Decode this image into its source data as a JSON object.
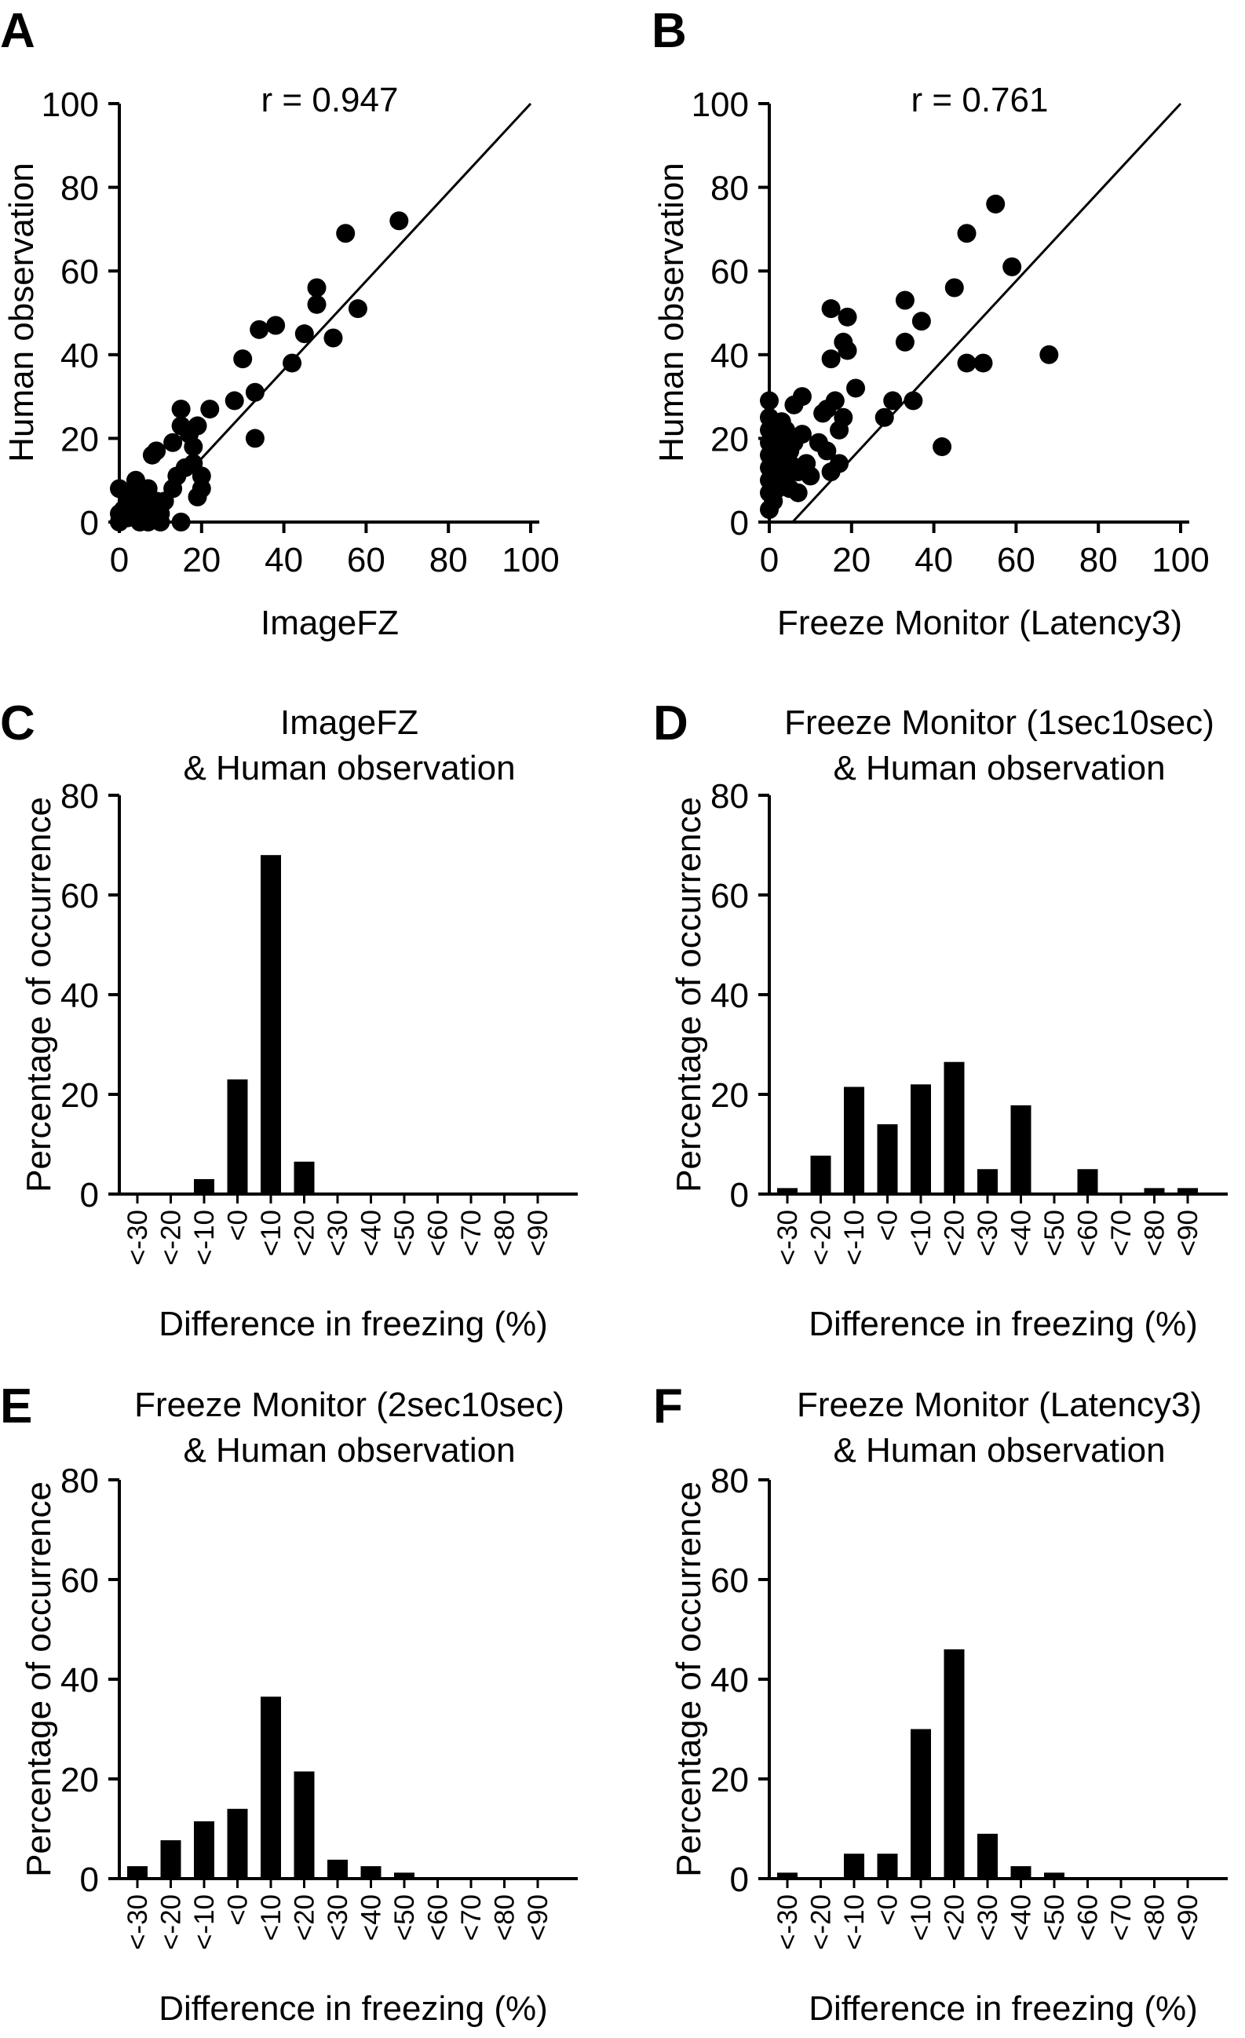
{
  "figure": {
    "panels": [
      {
        "letter": "A",
        "kind": "scatter"
      },
      {
        "letter": "B",
        "kind": "scatter"
      },
      {
        "letter": "C",
        "kind": "histogram"
      },
      {
        "letter": "D",
        "kind": "histogram"
      },
      {
        "letter": "E",
        "kind": "histogram"
      },
      {
        "letter": "F",
        "kind": "histogram"
      }
    ]
  },
  "chart_data": [
    {
      "panel": "A",
      "type": "scatter",
      "title": "",
      "annotation": "r = 0.947",
      "xlabel": "ImageFZ",
      "ylabel": "Human observation",
      "xlim": [
        0,
        100
      ],
      "ylim": [
        0,
        100
      ],
      "xticks": [
        0,
        20,
        40,
        60,
        80,
        100
      ],
      "yticks": [
        0,
        20,
        40,
        60,
        80,
        100
      ],
      "xtick_labels": [
        "0",
        "20",
        "40",
        "60",
        "80",
        "100"
      ],
      "ytick_labels": [
        "0",
        "20",
        "40",
        "60",
        "80",
        "100"
      ],
      "fit_line": {
        "x": [
          0,
          100
        ],
        "y": [
          -6,
          100
        ]
      },
      "points": [
        [
          0,
          8
        ],
        [
          0,
          2
        ],
        [
          0,
          0
        ],
        [
          1,
          3
        ],
        [
          2,
          5
        ],
        [
          2,
          1
        ],
        [
          3,
          7
        ],
        [
          4,
          10
        ],
        [
          4,
          2
        ],
        [
          5,
          0
        ],
        [
          5,
          5
        ],
        [
          6,
          3
        ],
        [
          7,
          0
        ],
        [
          7,
          8
        ],
        [
          8,
          2
        ],
        [
          8,
          16
        ],
        [
          9,
          17
        ],
        [
          9,
          5
        ],
        [
          10,
          0
        ],
        [
          10,
          2
        ],
        [
          11,
          5
        ],
        [
          13,
          19
        ],
        [
          13,
          8
        ],
        [
          14,
          11
        ],
        [
          15,
          0
        ],
        [
          15,
          23
        ],
        [
          15,
          27
        ],
        [
          16,
          13
        ],
        [
          17,
          21
        ],
        [
          18,
          14
        ],
        [
          18,
          18
        ],
        [
          19,
          6
        ],
        [
          19,
          23
        ],
        [
          20,
          11
        ],
        [
          20,
          8
        ],
        [
          22,
          27
        ],
        [
          28,
          29
        ],
        [
          30,
          39
        ],
        [
          33,
          31
        ],
        [
          34,
          46
        ],
        [
          33,
          20
        ],
        [
          38,
          47
        ],
        [
          42,
          38
        ],
        [
          45,
          45
        ],
        [
          48,
          52
        ],
        [
          48,
          56
        ],
        [
          52,
          44
        ],
        [
          55,
          69
        ],
        [
          58,
          51
        ],
        [
          68,
          72
        ]
      ]
    },
    {
      "panel": "B",
      "type": "scatter",
      "title": "",
      "annotation": "r = 0.761",
      "xlabel": "Freeze Monitor (Latency3)",
      "ylabel": "Human observation",
      "xlim": [
        0,
        100
      ],
      "ylim": [
        0,
        100
      ],
      "xticks": [
        0,
        20,
        40,
        60,
        80,
        100
      ],
      "yticks": [
        0,
        20,
        40,
        60,
        80,
        100
      ],
      "xtick_labels": [
        "0",
        "20",
        "40",
        "60",
        "80",
        "100"
      ],
      "ytick_labels": [
        "0",
        "20",
        "40",
        "60",
        "80",
        "100"
      ],
      "fit_line": {
        "x": [
          0,
          100
        ],
        "y": [
          -6,
          100
        ]
      },
      "points": [
        [
          0,
          3
        ],
        [
          0,
          7
        ],
        [
          0,
          10
        ],
        [
          0,
          13
        ],
        [
          0,
          16
        ],
        [
          0,
          19
        ],
        [
          0,
          22
        ],
        [
          0,
          25
        ],
        [
          0,
          29
        ],
        [
          1,
          5
        ],
        [
          1,
          11
        ],
        [
          1,
          17
        ],
        [
          2,
          8
        ],
        [
          2,
          15
        ],
        [
          2,
          20
        ],
        [
          3,
          12
        ],
        [
          3,
          18
        ],
        [
          3,
          24
        ],
        [
          4,
          9
        ],
        [
          4,
          22
        ],
        [
          5,
          14
        ],
        [
          5,
          17
        ],
        [
          5,
          8
        ],
        [
          6,
          19
        ],
        [
          6,
          28
        ],
        [
          7,
          7
        ],
        [
          7,
          12
        ],
        [
          8,
          30
        ],
        [
          8,
          21
        ],
        [
          9,
          14
        ],
        [
          10,
          11
        ],
        [
          12,
          19
        ],
        [
          13,
          26
        ],
        [
          14,
          17
        ],
        [
          14,
          27
        ],
        [
          15,
          12
        ],
        [
          15,
          39
        ],
        [
          15,
          51
        ],
        [
          16,
          29
        ],
        [
          17,
          22
        ],
        [
          17,
          14
        ],
        [
          18,
          25
        ],
        [
          18,
          43
        ],
        [
          19,
          49
        ],
        [
          19,
          41
        ],
        [
          21,
          32
        ],
        [
          28,
          25
        ],
        [
          30,
          29
        ],
        [
          33,
          53
        ],
        [
          33,
          43
        ],
        [
          35,
          29
        ],
        [
          37,
          48
        ],
        [
          42,
          18
        ],
        [
          45,
          56
        ],
        [
          48,
          38
        ],
        [
          48,
          69
        ],
        [
          52,
          38
        ],
        [
          55,
          76
        ],
        [
          59,
          61
        ],
        [
          68,
          40
        ]
      ]
    },
    {
      "panel": "C",
      "type": "bar",
      "title": "ImageFZ",
      "subtitle": "& Human observation",
      "xlabel": "Difference in freezing (%)",
      "ylabel": "Percentage of occurrence",
      "ylim": [
        0,
        80
      ],
      "yticks": [
        0,
        20,
        40,
        60,
        80
      ],
      "ytick_labels": [
        "0",
        "20",
        "40",
        "60",
        "80"
      ],
      "categories": [
        "<-30",
        "<-20",
        "<-10",
        "<0",
        "<10",
        "<20",
        "<30",
        "<40",
        "<50",
        "<60",
        "<70",
        "<80",
        "<90"
      ],
      "values": [
        0,
        0,
        3,
        23,
        68,
        6.5,
        0,
        0,
        0,
        0,
        0,
        0,
        0
      ]
    },
    {
      "panel": "D",
      "type": "bar",
      "title": "Freeze Monitor (1sec10sec)",
      "subtitle": "& Human observation",
      "xlabel": "Difference in freezing (%)",
      "ylabel": "Percentage of occurrence",
      "ylim": [
        0,
        80
      ],
      "yticks": [
        0,
        20,
        40,
        60,
        80
      ],
      "ytick_labels": [
        "0",
        "20",
        "40",
        "60",
        "80"
      ],
      "categories": [
        "<-30",
        "<-20",
        "<-10",
        "<0",
        "<10",
        "<20",
        "<30",
        "<40",
        "<50",
        "<60",
        "<70",
        "<80",
        "<90"
      ],
      "values": [
        1.2,
        7.7,
        21.5,
        14,
        22,
        26.5,
        5,
        17.8,
        0,
        5,
        0,
        1.2,
        1.2
      ]
    },
    {
      "panel": "E",
      "type": "bar",
      "title": "Freeze Monitor (2sec10sec)",
      "subtitle": "& Human observation",
      "xlabel": "Difference in freezing (%)",
      "ylabel": "Percentage of occurrence",
      "ylim": [
        0,
        80
      ],
      "yticks": [
        0,
        20,
        40,
        60,
        80
      ],
      "ytick_labels": [
        "0",
        "20",
        "40",
        "60",
        "80"
      ],
      "categories": [
        "<-30",
        "<-20",
        "<-10",
        "<0",
        "<10",
        "<20",
        "<30",
        "<40",
        "<50",
        "<60",
        "<70",
        "<80",
        "<90"
      ],
      "values": [
        2.5,
        7.7,
        11.5,
        14,
        36.5,
        21.5,
        3.8,
        2.5,
        1.2,
        0,
        0,
        0,
        0
      ]
    },
    {
      "panel": "F",
      "type": "bar",
      "title": "Freeze Monitor (Latency3)",
      "subtitle": "& Human observation",
      "xlabel": "Difference in freezing (%)",
      "ylabel": "Percentage of occurrence",
      "ylim": [
        0,
        80
      ],
      "yticks": [
        0,
        20,
        40,
        60,
        80
      ],
      "ytick_labels": [
        "0",
        "20",
        "40",
        "60",
        "80"
      ],
      "categories": [
        "<-30",
        "<-20",
        "<-10",
        "<0",
        "<10",
        "<20",
        "<30",
        "<40",
        "<50",
        "<60",
        "<70",
        "<80",
        "<90"
      ],
      "values": [
        1.2,
        0,
        5,
        5,
        30,
        46,
        9,
        2.5,
        1.2,
        0,
        0,
        0,
        0
      ]
    }
  ]
}
